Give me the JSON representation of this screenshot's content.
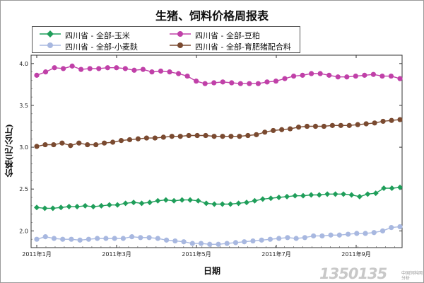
{
  "chart_data": {
    "type": "line",
    "title": "生猪、饲料价格周报表",
    "xlabel": "日期",
    "ylabel": "价格(元/公斤)",
    "ylim": [
      1.8,
      4.1
    ],
    "yticks": [
      "2.0",
      "2.5",
      "3.0",
      "3.5",
      "4.0"
    ],
    "xticks": [
      "2011年1月",
      "2011年3月",
      "2011年5月",
      "2011年7月",
      "2011年9月"
    ],
    "x_week_start": 0,
    "x_weeks_per_tick": 8.7,
    "legend_position": "top-left",
    "series": [
      {
        "name": "四川省 - 全部-玉米",
        "color": "#1f9e5a",
        "marker": "diamond",
        "values": [
          2.28,
          2.27,
          2.27,
          2.28,
          2.29,
          2.29,
          2.3,
          2.29,
          2.3,
          2.31,
          2.31,
          2.33,
          2.34,
          2.33,
          2.34,
          2.36,
          2.37,
          2.36,
          2.37,
          2.37,
          2.36,
          2.33,
          2.32,
          2.32,
          2.32,
          2.33,
          2.34,
          2.36,
          2.38,
          2.39,
          2.4,
          2.41,
          2.42,
          2.42,
          2.43,
          2.43,
          2.44,
          2.44,
          2.44,
          2.43,
          2.41,
          2.44,
          2.45,
          2.51,
          2.51,
          2.52
        ]
      },
      {
        "name": "四川省 - 全部-豆粕",
        "color": "#c040a8",
        "marker": "circle",
        "values": [
          3.86,
          3.9,
          3.95,
          3.94,
          3.97,
          3.93,
          3.94,
          3.94,
          3.95,
          3.95,
          3.94,
          3.92,
          3.93,
          3.9,
          3.91,
          3.9,
          3.88,
          3.85,
          3.79,
          3.76,
          3.77,
          3.78,
          3.77,
          3.76,
          3.76,
          3.76,
          3.78,
          3.79,
          3.82,
          3.85,
          3.86,
          3.88,
          3.88,
          3.86,
          3.84,
          3.84,
          3.85,
          3.86,
          3.87,
          3.85,
          3.85,
          3.82
        ]
      },
      {
        "name": "四川省 - 全部-小麦麸",
        "color": "#a8b8e0",
        "marker": "circle",
        "values": [
          1.9,
          1.93,
          1.91,
          1.9,
          1.9,
          1.89,
          1.9,
          1.91,
          1.91,
          1.91,
          1.91,
          1.93,
          1.92,
          1.92,
          1.91,
          1.89,
          1.88,
          1.87,
          1.85,
          1.85,
          1.84,
          1.84,
          1.85,
          1.86,
          1.87,
          1.88,
          1.89,
          1.9,
          1.91,
          1.92,
          1.91,
          1.92,
          1.94,
          1.94,
          1.95,
          1.95,
          1.96,
          1.97,
          1.97,
          1.98,
          2.0,
          2.04,
          2.05
        ]
      },
      {
        "name": "四川省 - 全部-育肥猪配合料",
        "color": "#7a4a30",
        "marker": "circle",
        "values": [
          3.01,
          3.03,
          3.03,
          3.05,
          3.02,
          3.05,
          3.03,
          3.03,
          3.05,
          3.06,
          3.08,
          3.09,
          3.1,
          3.11,
          3.11,
          3.12,
          3.13,
          3.13,
          3.14,
          3.14,
          3.14,
          3.13,
          3.13,
          3.13,
          3.13,
          3.14,
          3.15,
          3.18,
          3.2,
          3.21,
          3.22,
          3.24,
          3.25,
          3.25,
          3.25,
          3.26,
          3.26,
          3.26,
          3.27,
          3.28,
          3.29,
          3.31,
          3.32,
          3.33
        ]
      }
    ]
  },
  "watermark": {
    "text": "1350135",
    "small_text": "中国饲料网 分析"
  }
}
